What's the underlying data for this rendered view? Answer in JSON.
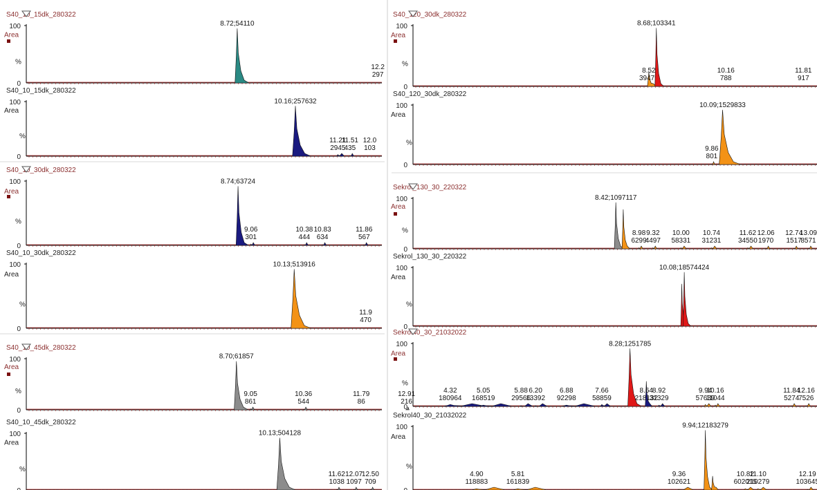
{
  "axis_labels": {
    "y_max": "100",
    "y_zero": "0",
    "area": "Area",
    "percent": "%"
  },
  "colors": {
    "teal": "#2a8a84",
    "navy": "#1a1a80",
    "orange": "#f39216",
    "gray": "#8c8c8c",
    "red": "#e01818",
    "title_red": "#8b2f2f",
    "marker": "#7a1010",
    "axis": "#000000",
    "baseline_red": "#a02020"
  },
  "chart_data": [
    {
      "type": "area",
      "title": "S40_10_15dk_280322",
      "title_style": "red",
      "header_marker": true,
      "xlim": [
        3.5,
        12.3
      ],
      "ylim": [
        0,
        100
      ],
      "peaks": [
        {
          "rt": 8.72,
          "area": "54110",
          "height": 95,
          "w": 0.09,
          "color": "teal",
          "label": "8.72;54110",
          "inline": true
        },
        {
          "rt": 12.2,
          "area": "297",
          "height": 0,
          "w": 0.02,
          "color": "teal",
          "label": "12.2",
          "inline": false
        }
      ]
    },
    {
      "type": "area",
      "title": "S40_10_15dk_280322",
      "title_style": "black",
      "header_marker": false,
      "xlim": [
        3.5,
        12.3
      ],
      "ylim": [
        0,
        100
      ],
      "peaks": [
        {
          "rt": 10.16,
          "area": "257632",
          "height": 92,
          "w": 0.12,
          "color": "navy",
          "label": "10.16;257632",
          "inline": true
        },
        {
          "rt": 11.21,
          "area": "2945",
          "height": 3,
          "w": 0.05,
          "color": "navy",
          "label": "11.21",
          "inline": false
        },
        {
          "rt": 11.51,
          "area": "435",
          "height": 1,
          "w": 0.03,
          "color": "navy",
          "label": "11.51",
          "inline": false
        },
        {
          "rt": 12.0,
          "area": "103",
          "height": 0,
          "w": 0.02,
          "color": "navy",
          "label": "12.0",
          "inline": false
        }
      ]
    },
    {
      "type": "area",
      "title": "S40_10_30dk_280322",
      "title_style": "red",
      "header_marker": true,
      "xlim": [
        3.5,
        12.3
      ],
      "ylim": [
        0,
        100
      ],
      "peaks": [
        {
          "rt": 8.74,
          "area": "63724",
          "height": 92,
          "w": 0.08,
          "color": "navy",
          "label": "8.74;63724",
          "inline": true
        },
        {
          "rt": 9.06,
          "area": "301",
          "height": 2,
          "w": 0.03,
          "color": "navy",
          "label": "9.06",
          "inline": false
        },
        {
          "rt": 10.38,
          "area": "444",
          "height": 1,
          "w": 0.03,
          "color": "navy",
          "label": "10.38",
          "inline": false
        },
        {
          "rt": 10.83,
          "area": "634",
          "height": 1,
          "w": 0.03,
          "color": "navy",
          "label": "10.83",
          "inline": false
        },
        {
          "rt": 11.86,
          "area": "567",
          "height": 1,
          "w": 0.03,
          "color": "navy",
          "label": "11.86",
          "inline": false
        }
      ]
    },
    {
      "type": "area",
      "title": "S40_10_30dk_280322",
      "title_style": "black",
      "header_marker": false,
      "xlim": [
        3.5,
        12.3
      ],
      "ylim": [
        0,
        100
      ],
      "peaks": [
        {
          "rt": 10.13,
          "area": "513916",
          "height": 92,
          "w": 0.13,
          "color": "orange",
          "label": "10.13;513916",
          "inline": true
        },
        {
          "rt": 11.9,
          "area": "470",
          "height": 0,
          "w": 0.02,
          "color": "orange",
          "label": "11.9",
          "inline": false
        }
      ]
    },
    {
      "type": "area",
      "title": "S40_10_45dk_280322",
      "title_style": "red",
      "header_marker": true,
      "xlim": [
        3.5,
        12.3
      ],
      "ylim": [
        0,
        100
      ],
      "peaks": [
        {
          "rt": 8.7,
          "area": "61857",
          "height": 95,
          "w": 0.09,
          "color": "gray",
          "label": "8.70;61857",
          "inline": true
        },
        {
          "rt": 9.05,
          "area": "861",
          "height": 2,
          "w": 0.03,
          "color": "gray",
          "label": "9.05",
          "inline": false
        },
        {
          "rt": 10.36,
          "area": "544",
          "height": 1,
          "w": 0.03,
          "color": "gray",
          "label": "10.36",
          "inline": false
        },
        {
          "rt": 11.79,
          "area": "86",
          "height": 0,
          "w": 0.02,
          "color": "gray",
          "label": "11.79",
          "inline": false
        },
        {
          "rt": 12.91,
          "area": "216",
          "height": 1,
          "w": 0.02,
          "color": "gray",
          "label": "12.91",
          "inline": false
        }
      ]
    },
    {
      "type": "area",
      "title": "S40_10_45dk_280322",
      "title_style": "black",
      "header_marker": false,
      "xlim": [
        3.5,
        12.8
      ],
      "ylim": [
        0,
        100
      ],
      "peaks": [
        {
          "rt": 10.13,
          "area": "504128",
          "height": 92,
          "w": 0.13,
          "color": "gray",
          "label": "10.13;504128",
          "inline": true
        },
        {
          "rt": 11.62,
          "area": "1038",
          "height": 1,
          "w": 0.03,
          "color": "gray",
          "label": "11.62",
          "inline": false
        },
        {
          "rt": 12.07,
          "area": "1097",
          "height": 1,
          "w": 0.03,
          "color": "gray",
          "label": "12.07",
          "inline": false
        },
        {
          "rt": 12.5,
          "area": "709",
          "height": 1,
          "w": 0.03,
          "color": "gray",
          "label": "12.50",
          "inline": false
        }
      ]
    },
    {
      "type": "area",
      "title": "S40_120_30dk_280322",
      "title_style": "red",
      "header_marker": true,
      "xlim": [
        3.5,
        12.1
      ],
      "ylim": [
        0,
        100
      ],
      "peaks": [
        {
          "rt": 8.52,
          "area": "39479",
          "height": 24,
          "w": 0.05,
          "color": "orange",
          "label": "8.52",
          "inline": false
        },
        {
          "rt": 8.68,
          "area": "103341",
          "height": 96,
          "w": 0.05,
          "color": "red",
          "label": "8.68;103341",
          "inline": true
        },
        {
          "rt": 10.16,
          "area": "788",
          "height": 0,
          "w": 0.02,
          "color": "red",
          "label": "10.16",
          "inline": false
        },
        {
          "rt": 11.81,
          "area": "917",
          "height": 0,
          "w": 0.02,
          "color": "red",
          "label": "11.81",
          "inline": false
        }
      ]
    },
    {
      "type": "area",
      "title": "S40_120_30dk_280322",
      "title_style": "black",
      "header_marker": false,
      "xlim": [
        3.5,
        12.1
      ],
      "ylim": [
        0,
        100
      ],
      "peaks": [
        {
          "rt": 9.86,
          "area": "801",
          "height": 1,
          "w": 0.02,
          "color": "orange",
          "label": "9.86",
          "inline": false
        },
        {
          "rt": 10.09,
          "area": "1529833",
          "height": 92,
          "w": 0.12,
          "color": "orange",
          "label": "10.09;1529833",
          "inline": true
        }
      ]
    },
    {
      "type": "area",
      "title": "Sekrol_130_30_220322",
      "title_style": "red",
      "header_marker": true,
      "xlim": [
        3.5,
        13.3
      ],
      "ylim": [
        0,
        100
      ],
      "peaks": [
        {
          "rt": 8.42,
          "area": "1097117",
          "height": 92,
          "w": 0.06,
          "color": "gray",
          "label": "8.42;1097117",
          "inline": true
        },
        {
          "rt": 8.6,
          "area": "",
          "height": 78,
          "w": 0.05,
          "color": "orange",
          "label": "",
          "inline": false
        },
        {
          "rt": 8.98,
          "area": "6299",
          "height": 2,
          "w": 0.03,
          "color": "orange",
          "label": "8.98",
          "inline": false
        },
        {
          "rt": 9.32,
          "area": "4497",
          "height": 2,
          "w": 0.03,
          "color": "orange",
          "label": "9.32",
          "inline": false
        },
        {
          "rt": 10.0,
          "area": "58331",
          "height": 2,
          "w": 0.04,
          "color": "orange",
          "label": "10.00",
          "inline": false
        },
        {
          "rt": 10.74,
          "area": "31231",
          "height": 2,
          "w": 0.04,
          "color": "orange",
          "label": "10.74",
          "inline": false
        },
        {
          "rt": 11.62,
          "area": "34550",
          "height": 2,
          "w": 0.04,
          "color": "orange",
          "label": "11.62",
          "inline": false
        },
        {
          "rt": 12.06,
          "area": "1970",
          "height": 1,
          "w": 0.03,
          "color": "orange",
          "label": "12.06",
          "inline": false
        },
        {
          "rt": 12.74,
          "area": "1517",
          "height": 1,
          "w": 0.03,
          "color": "orange",
          "label": "12.74",
          "inline": false
        },
        {
          "rt": 13.09,
          "area": "8571",
          "height": 1,
          "w": 0.03,
          "color": "orange",
          "label": "13.09",
          "inline": false
        }
      ]
    },
    {
      "type": "area",
      "title": "Sekrol_130_30_220322",
      "title_style": "black",
      "header_marker": false,
      "xlim": [
        3.5,
        13.3
      ],
      "ylim": [
        0,
        100
      ],
      "peaks": [
        {
          "rt": 10.02,
          "area": "",
          "height": 72,
          "w": 0.04,
          "color": "red",
          "label": "",
          "inline": false
        },
        {
          "rt": 10.08,
          "area": "18574424",
          "height": 92,
          "w": 0.05,
          "color": "red",
          "label": "10.08;18574424",
          "inline": true
        }
      ]
    },
    {
      "type": "area",
      "title": "Sekrol40_30_21032022",
      "title_style": "red",
      "header_marker": true,
      "xlim": [
        3.5,
        12.4
      ],
      "ylim": [
        0,
        100
      ],
      "peaks": [
        {
          "rt": 4.32,
          "area": "180964",
          "height": 3,
          "w": 0.25,
          "color": "navy",
          "label": "4.32",
          "inline": false
        },
        {
          "rt": 5.05,
          "area": "168519",
          "height": 2,
          "w": 0.2,
          "color": "navy",
          "label": "5.05",
          "inline": false
        },
        {
          "rt": 5.88,
          "area": "29566",
          "height": 1,
          "w": 0.08,
          "color": "navy",
          "label": "5.88",
          "inline": false
        },
        {
          "rt": 6.2,
          "area": "13392",
          "height": 1,
          "w": 0.08,
          "color": "navy",
          "label": "6.20",
          "inline": false
        },
        {
          "rt": 6.88,
          "area": "92298",
          "height": 2,
          "w": 0.2,
          "color": "navy",
          "label": "6.88",
          "inline": false
        },
        {
          "rt": 7.66,
          "area": "58859",
          "height": 3,
          "w": 0.06,
          "color": "navy",
          "label": "7.66",
          "inline": false
        },
        {
          "rt": 8.28,
          "area": "1251785",
          "height": 92,
          "w": 0.08,
          "color": "red",
          "label": "8.28;1251785",
          "inline": true
        },
        {
          "rt": 8.64,
          "area": "218132",
          "height": 40,
          "w": 0.04,
          "color": "navy",
          "label": "8.64",
          "inline": false
        },
        {
          "rt": 8.92,
          "area": "31329",
          "height": 2,
          "w": 0.04,
          "color": "navy",
          "label": "8.92",
          "inline": false
        },
        {
          "rt": 9.94,
          "area": "57639",
          "height": 3,
          "w": 0.04,
          "color": "orange",
          "label": "9.94",
          "inline": false
        },
        {
          "rt": 10.16,
          "area": "11044",
          "height": 2,
          "w": 0.03,
          "color": "orange",
          "label": "10.16",
          "inline": false
        },
        {
          "rt": 11.84,
          "area": "5274",
          "height": 1,
          "w": 0.03,
          "color": "orange",
          "label": "11.84",
          "inline": false
        },
        {
          "rt": 12.16,
          "area": "7526",
          "height": 1,
          "w": 0.03,
          "color": "orange",
          "label": "12.16",
          "inline": false
        }
      ]
    },
    {
      "type": "area",
      "title": "Sekrol40_30_21032022",
      "title_style": "black",
      "header_marker": false,
      "xlim": [
        3.5,
        12.4
      ],
      "ylim": [
        0,
        100
      ],
      "peaks": [
        {
          "rt": 4.9,
          "area": "118883",
          "height": 2,
          "w": 0.2,
          "color": "orange",
          "label": "4.90",
          "inline": false
        },
        {
          "rt": 5.81,
          "area": "161839",
          "height": 2,
          "w": 0.2,
          "color": "orange",
          "label": "5.81",
          "inline": false
        },
        {
          "rt": 9.36,
          "area": "102621",
          "height": 1,
          "w": 0.1,
          "color": "orange",
          "label": "9.36",
          "inline": false
        },
        {
          "rt": 9.94,
          "area": "12183279",
          "height": 94,
          "w": 0.05,
          "color": "orange",
          "label": "9.94;12183279",
          "inline": true
        },
        {
          "rt": 10.1,
          "area": "",
          "height": 22,
          "w": 0.04,
          "color": "orange",
          "label": "",
          "inline": false
        },
        {
          "rt": 10.82,
          "area": "602015",
          "height": 2,
          "w": 0.06,
          "color": "orange",
          "label": "10.82",
          "inline": false
        },
        {
          "rt": 11.1,
          "area": "210279",
          "height": 2,
          "w": 0.06,
          "color": "orange",
          "label": "11.10",
          "inline": false
        },
        {
          "rt": 12.19,
          "area": "103645",
          "height": 1,
          "w": 0.04,
          "color": "orange",
          "label": "12.19",
          "inline": false
        }
      ]
    }
  ]
}
